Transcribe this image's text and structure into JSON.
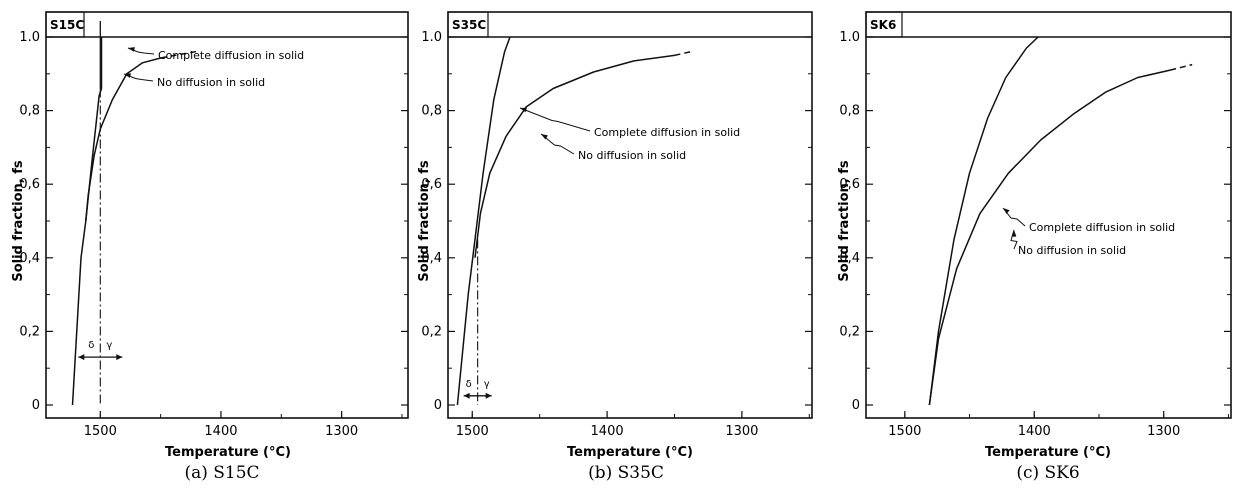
{
  "chart_data": [
    {
      "type": "line",
      "tag": "S15C",
      "caption": "(a) S15C",
      "xlabel": "Temperature (°C)",
      "ylabel": "Solid fraction, fs",
      "x_reversed": true,
      "xlim": [
        1545,
        1245
      ],
      "ylim": [
        0,
        1.0
      ],
      "x_ticks": [
        1500,
        1400,
        1300
      ],
      "y_ticks": [
        0,
        0.2,
        0.4,
        0.6,
        0.8,
        1.0
      ],
      "y_tick_labels": [
        "0",
        "0,2",
        "0,4",
        "0,6",
        "0,8",
        "1.0"
      ],
      "series": [
        {
          "label": "Complete diffusion in solid",
          "points": [
            [
              1523,
              0
            ],
            [
              1516,
              0.4
            ],
            [
              1512,
              0.5
            ],
            [
              1507,
              0.66
            ],
            [
              1501,
              0.84
            ],
            [
              1499,
              0.86
            ],
            [
              1499,
              1.0
            ]
          ]
        },
        {
          "label": "No diffusion in solid",
          "points": [
            [
              1512,
              0.5
            ],
            [
              1510,
              0.57
            ],
            [
              1505,
              0.68
            ],
            [
              1500,
              0.75
            ],
            [
              1490,
              0.83
            ],
            [
              1478,
              0.9
            ],
            [
              1465,
              0.93
            ],
            [
              1450,
              0.943
            ]
          ]
        }
      ],
      "dashed_extension": [
        [
          1450,
          0.943
        ],
        [
          1418,
          0.962
        ]
      ],
      "vline": {
        "x": 1500,
        "y_range": [
          0,
          1.0
        ]
      },
      "annotations": {
        "phase_left": "δ",
        "phase_right": "γ",
        "phase_arrow_y": 0.13
      }
    },
    {
      "type": "line",
      "tag": "S35C",
      "caption": "(b) S35C",
      "xlabel": "Temperature (°C)",
      "ylabel": "Solid fraction, fs",
      "x_reversed": true,
      "xlim": [
        1518,
        1248
      ],
      "ylim": [
        0,
        1.0
      ],
      "x_ticks": [
        1500,
        1400,
        1300
      ],
      "y_ticks": [
        0,
        0.2,
        0.4,
        0.6,
        0.8,
        1.0
      ],
      "y_tick_labels": [
        "0",
        "0,2",
        "0,4",
        "0,6",
        "0,8",
        "1.0"
      ],
      "series": [
        {
          "label": "Complete diffusion in solid",
          "points": [
            [
              1511,
              0
            ],
            [
              1507,
              0.15
            ],
            [
              1503,
              0.3
            ],
            [
              1498,
              0.45
            ],
            [
              1492,
              0.63
            ],
            [
              1484,
              0.83
            ],
            [
              1476,
              0.96
            ],
            [
              1472,
              1.0
            ]
          ]
        },
        {
          "label": "No diffusion in solid",
          "points": [
            [
              1498,
              0.4
            ],
            [
              1494,
              0.52
            ],
            [
              1487,
              0.63
            ],
            [
              1475,
              0.73
            ],
            [
              1460,
              0.81
            ],
            [
              1440,
              0.86
            ],
            [
              1410,
              0.905
            ],
            [
              1380,
              0.935
            ],
            [
              1350,
              0.95
            ]
          ]
        }
      ],
      "dashed_extension": [
        [
          1350,
          0.95
        ],
        [
          1338,
          0.96
        ]
      ],
      "vline": {
        "x": 1496,
        "y_range": [
          0,
          0.45
        ]
      },
      "annotations": {
        "phase_left": "δ",
        "phase_right": "γ",
        "phase_arrow_y": 0.025
      }
    },
    {
      "type": "line",
      "tag": "SK6",
      "caption": "(c) SK6",
      "xlabel": "Temperature (°C)",
      "ylabel": "Solid fraction, fs",
      "x_reversed": true,
      "xlim": [
        1530,
        1248
      ],
      "ylim": [
        0,
        1.0
      ],
      "x_ticks": [
        1500,
        1400,
        1300
      ],
      "y_ticks": [
        0,
        0.2,
        0.4,
        0.6,
        0.8,
        1.0
      ],
      "y_tick_labels": [
        "0",
        "0,2",
        "0,4",
        "0,6",
        "0,8",
        "1.0"
      ],
      "series": [
        {
          "label": "Complete diffusion in solid",
          "points": [
            [
              1481,
              0
            ],
            [
              1474,
              0.2
            ],
            [
              1462,
              0.45
            ],
            [
              1450,
              0.63
            ],
            [
              1436,
              0.78
            ],
            [
              1422,
              0.89
            ],
            [
              1406,
              0.97
            ],
            [
              1397,
              1.0
            ]
          ]
        },
        {
          "label": "No diffusion in solid",
          "points": [
            [
              1481,
              0
            ],
            [
              1474,
              0.18
            ],
            [
              1460,
              0.37
            ],
            [
              1442,
              0.52
            ],
            [
              1420,
              0.63
            ],
            [
              1395,
              0.72
            ],
            [
              1370,
              0.79
            ],
            [
              1345,
              0.85
            ],
            [
              1320,
              0.89
            ],
            [
              1295,
              0.91
            ]
          ]
        }
      ],
      "dashed_extension": [
        [
          1295,
          0.91
        ],
        [
          1278,
          0.925
        ]
      ],
      "vline": null,
      "annotations": {}
    }
  ]
}
